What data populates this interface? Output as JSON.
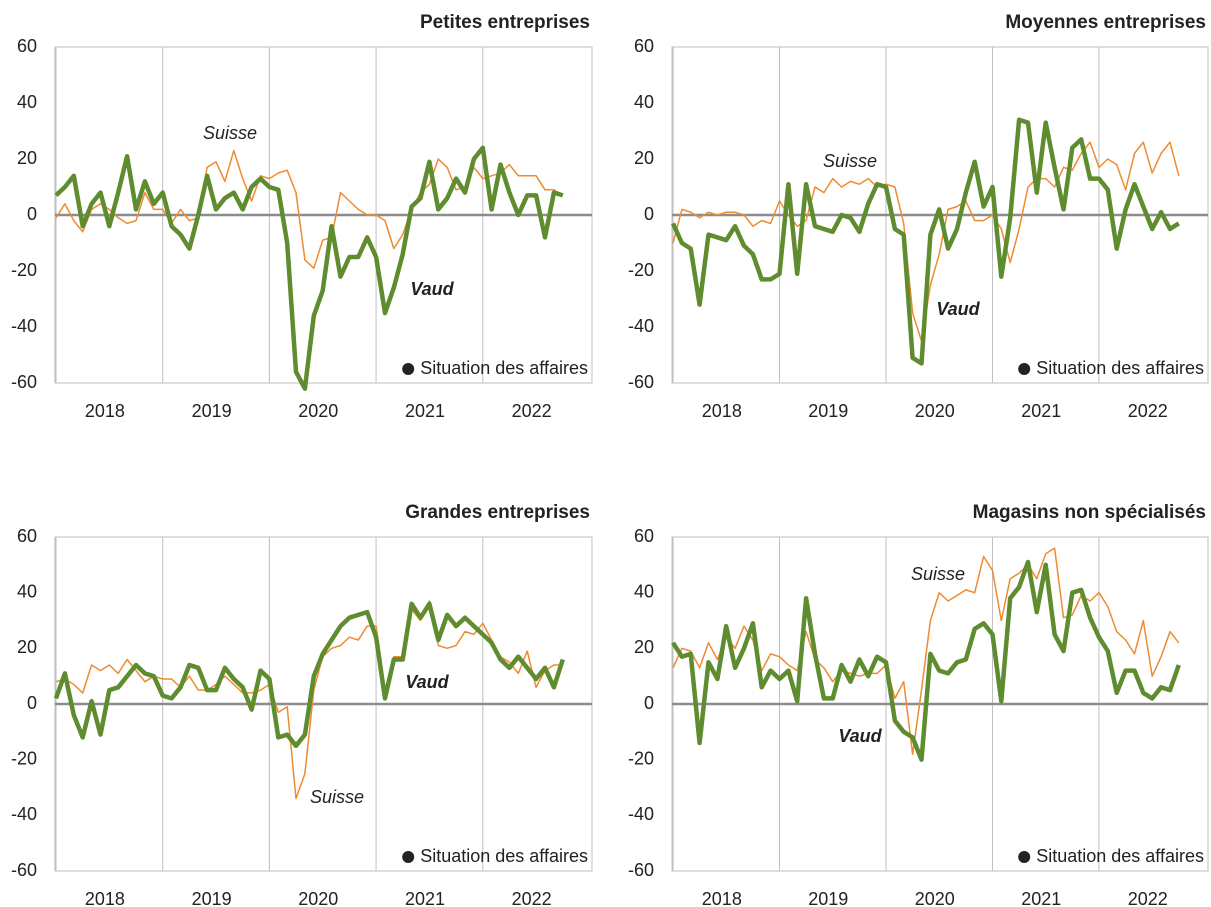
{
  "chart_data": [
    {
      "type": "line",
      "title": "Petites entreprises",
      "note": "Situation des affaires",
      "categories": [
        null,
        null,
        null,
        null,
        null,
        null,
        "2018",
        null,
        null,
        null,
        null,
        null,
        null,
        null,
        null,
        null,
        null,
        null,
        "2019",
        null,
        null,
        null,
        null,
        null,
        null,
        null,
        null,
        null,
        null,
        null,
        "2020",
        null,
        null,
        null,
        null,
        null,
        null,
        null,
        null,
        null,
        null,
        null,
        "2021",
        null,
        null,
        null,
        null,
        null,
        null,
        null,
        null,
        null,
        null,
        null,
        "2022",
        null,
        null,
        null
      ],
      "ylim": [
        -60,
        60
      ],
      "yticks": [
        -60,
        -40,
        -20,
        0,
        20,
        40,
        60
      ],
      "grid": true,
      "series": [
        {
          "name": "Suisse",
          "color": "#f08a30",
          "values": [
            -1,
            4,
            -2,
            -6,
            2,
            4,
            2,
            -1,
            -3,
            -2,
            8,
            2,
            2,
            -3,
            2,
            -2,
            -1,
            17,
            19,
            12,
            23,
            13,
            5,
            14,
            13,
            15,
            16,
            8,
            -16,
            -19,
            -9,
            -8,
            8,
            5,
            2,
            0,
            0,
            -2,
            -12,
            -7,
            2,
            8,
            11,
            20,
            17,
            9,
            10,
            17,
            13,
            14,
            15,
            18,
            14,
            14,
            14,
            9,
            9,
            7
          ]
        },
        {
          "name": "Vaud",
          "color": "#5e8c2f",
          "values": [
            7,
            10,
            14,
            -4,
            4,
            8,
            -4,
            8,
            21,
            2,
            12,
            4,
            8,
            -4,
            -7,
            -12,
            0,
            14,
            2,
            6,
            8,
            2,
            10,
            13,
            10,
            9,
            -10,
            -56,
            -62,
            -36,
            -27,
            -4,
            -22,
            -15,
            -15,
            -8,
            -15,
            -35,
            -26,
            -14,
            3,
            6,
            19,
            2,
            6,
            13,
            8,
            20,
            24,
            2,
            18,
            8,
            0,
            7,
            7,
            -8,
            8,
            7
          ]
        }
      ]
    },
    {
      "type": "line",
      "title": "Moyennes entreprises",
      "note": "Situation des affaires",
      "categories": [
        null,
        null,
        null,
        null,
        null,
        null,
        "2018",
        null,
        null,
        null,
        null,
        null,
        null,
        null,
        null,
        null,
        null,
        null,
        "2019",
        null,
        null,
        null,
        null,
        null,
        null,
        null,
        null,
        null,
        null,
        null,
        "2020",
        null,
        null,
        null,
        null,
        null,
        null,
        null,
        null,
        null,
        null,
        null,
        "2021",
        null,
        null,
        null,
        null,
        null,
        null,
        null,
        null,
        null,
        null,
        null,
        "2022",
        null,
        null,
        null
      ],
      "ylim": [
        -60,
        60
      ],
      "yticks": [
        -60,
        -40,
        -20,
        0,
        20,
        40,
        60
      ],
      "grid": true,
      "series": [
        {
          "name": "Suisse",
          "color": "#f08a30",
          "values": [
            -10,
            2,
            1,
            -1,
            1,
            0,
            1,
            1,
            0,
            -4,
            -2,
            -3,
            5,
            0,
            -4,
            -2,
            10,
            8,
            13,
            10,
            12,
            11,
            13,
            10,
            11,
            10,
            -3,
            -35,
            -45,
            -25,
            -14,
            2,
            3,
            5,
            -2,
            -2,
            0,
            -5,
            -17,
            -5,
            10,
            13,
            13,
            10,
            17,
            16,
            22,
            26,
            17,
            20,
            18,
            9,
            22,
            26,
            15,
            22,
            26,
            14
          ]
        },
        {
          "name": "Vaud",
          "color": "#5e8c2f",
          "values": [
            -3,
            -10,
            -12,
            -32,
            -7,
            -8,
            -9,
            -4,
            -11,
            -14,
            -23,
            -23,
            -21,
            11,
            -21,
            11,
            -4,
            -5,
            -6,
            0,
            -1,
            -6,
            4,
            11,
            10,
            -5,
            -7,
            -51,
            -53,
            -7,
            2,
            -12,
            -5,
            8,
            19,
            3,
            10,
            -22,
            -1,
            34,
            33,
            8,
            33,
            17,
            2,
            24,
            27,
            13,
            13,
            9,
            -12,
            2,
            11,
            3,
            -5,
            1,
            -5,
            -3
          ]
        }
      ]
    },
    {
      "type": "line",
      "title": "Grandes entreprises",
      "note": "Situation des affaires",
      "categories": [
        null,
        null,
        null,
        null,
        null,
        null,
        "2018",
        null,
        null,
        null,
        null,
        null,
        null,
        null,
        null,
        null,
        null,
        null,
        "2019",
        null,
        null,
        null,
        null,
        null,
        null,
        null,
        null,
        null,
        null,
        null,
        "2020",
        null,
        null,
        null,
        null,
        null,
        null,
        null,
        null,
        null,
        null,
        null,
        "2021",
        null,
        null,
        null,
        null,
        null,
        null,
        null,
        null,
        null,
        null,
        null,
        "2022",
        null,
        null,
        null
      ],
      "ylim": [
        -60,
        60
      ],
      "yticks": [
        -60,
        -40,
        -20,
        0,
        20,
        40,
        60
      ],
      "grid": true,
      "series": [
        {
          "name": "Suisse",
          "color": "#f08a30",
          "values": [
            8,
            9,
            7,
            4,
            14,
            12,
            14,
            11,
            16,
            12,
            8,
            10,
            9,
            9,
            6,
            10,
            5,
            5,
            7,
            10,
            7,
            4,
            4,
            5,
            7,
            -3,
            -1,
            -34,
            -25,
            5,
            17,
            20,
            21,
            24,
            23,
            28,
            28,
            5,
            17,
            17,
            34,
            30,
            37,
            21,
            20,
            21,
            26,
            25,
            29,
            23,
            17,
            15,
            11,
            19,
            6,
            12,
            14,
            14
          ]
        },
        {
          "name": "Vaud",
          "color": "#5e8c2f",
          "values": [
            2,
            11,
            -4,
            -12,
            1,
            -11,
            5,
            6,
            10,
            14,
            11,
            10,
            3,
            2,
            6,
            14,
            13,
            5,
            5,
            13,
            9,
            6,
            -2,
            12,
            9,
            -12,
            -11,
            -15,
            -11,
            10,
            18,
            23,
            28,
            31,
            32,
            33,
            24,
            2,
            16,
            16,
            36,
            31,
            36,
            23,
            32,
            28,
            31,
            28,
            25,
            22,
            16,
            13,
            17,
            13,
            9,
            13,
            6,
            16
          ]
        }
      ]
    },
    {
      "type": "line",
      "title": "Magasins non spécialisés",
      "note": "Situation des affaires",
      "categories": [
        null,
        null,
        null,
        null,
        null,
        null,
        "2018",
        null,
        null,
        null,
        null,
        null,
        null,
        null,
        null,
        null,
        null,
        null,
        "2019",
        null,
        null,
        null,
        null,
        null,
        null,
        null,
        null,
        null,
        null,
        null,
        "2020",
        null,
        null,
        null,
        null,
        null,
        null,
        null,
        null,
        null,
        null,
        null,
        "2021",
        null,
        null,
        null,
        null,
        null,
        null,
        null,
        null,
        null,
        null,
        null,
        "2022",
        null,
        null,
        null
      ],
      "ylim": [
        -60,
        60
      ],
      "yticks": [
        -60,
        -40,
        -20,
        0,
        20,
        40,
        60
      ],
      "grid": true,
      "series": [
        {
          "name": "Suisse",
          "color": "#f08a30",
          "values": [
            13,
            20,
            19,
            13,
            22,
            16,
            24,
            20,
            28,
            23,
            12,
            18,
            17,
            14,
            12,
            26,
            16,
            13,
            8,
            12,
            11,
            10,
            11,
            11,
            14,
            2,
            8,
            -18,
            5,
            30,
            40,
            37,
            39,
            41,
            40,
            53,
            48,
            30,
            45,
            47,
            50,
            45,
            54,
            56,
            31,
            32,
            39,
            37,
            40,
            35,
            26,
            23,
            18,
            30,
            10,
            17,
            26,
            22
          ]
        },
        {
          "name": "Vaud",
          "color": "#5e8c2f",
          "values": [
            22,
            17,
            18,
            -14,
            15,
            9,
            28,
            13,
            20,
            29,
            6,
            12,
            9,
            12,
            1,
            38,
            18,
            2,
            2,
            14,
            8,
            16,
            10,
            17,
            15,
            -6,
            -10,
            -12,
            -20,
            18,
            12,
            11,
            15,
            16,
            27,
            29,
            25,
            1,
            38,
            42,
            51,
            33,
            50,
            25,
            19,
            40,
            41,
            31,
            24,
            19,
            4,
            12,
            12,
            4,
            2,
            6,
            5,
            14
          ]
        }
      ]
    }
  ]
}
